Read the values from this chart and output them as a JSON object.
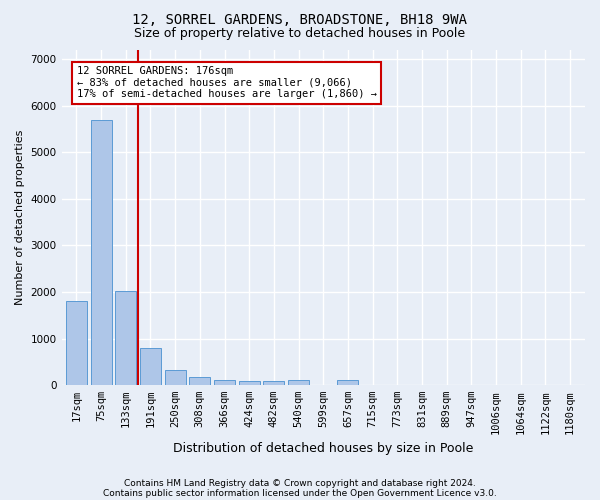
{
  "title1": "12, SORREL GARDENS, BROADSTONE, BH18 9WA",
  "title2": "Size of property relative to detached houses in Poole",
  "xlabel": "Distribution of detached houses by size in Poole",
  "ylabel": "Number of detached properties",
  "categories": [
    "17sqm",
    "75sqm",
    "133sqm",
    "191sqm",
    "250sqm",
    "308sqm",
    "366sqm",
    "424sqm",
    "482sqm",
    "540sqm",
    "599sqm",
    "657sqm",
    "715sqm",
    "773sqm",
    "831sqm",
    "889sqm",
    "947sqm",
    "1006sqm",
    "1064sqm",
    "1122sqm",
    "1180sqm"
  ],
  "values": [
    1800,
    5700,
    2020,
    800,
    330,
    175,
    100,
    85,
    85,
    100,
    0,
    100,
    0,
    0,
    0,
    0,
    0,
    0,
    0,
    0,
    0
  ],
  "bar_color": "#aec6e8",
  "bar_edge_color": "#5b9bd5",
  "annotation_text": "12 SORREL GARDENS: 176sqm\n← 83% of detached houses are smaller (9,066)\n17% of semi-detached houses are larger (1,860) →",
  "annotation_box_color": "#ffffff",
  "annotation_box_edge": "#cc0000",
  "vline_color": "#cc0000",
  "ylim": [
    0,
    7200
  ],
  "yticks": [
    0,
    1000,
    2000,
    3000,
    4000,
    5000,
    6000,
    7000
  ],
  "footer1": "Contains HM Land Registry data © Crown copyright and database right 2024.",
  "footer2": "Contains public sector information licensed under the Open Government Licence v3.0.",
  "bg_color": "#e8eef7",
  "plot_bg_color": "#e8eef7",
  "grid_color": "#ffffff",
  "title1_fontsize": 10,
  "title2_fontsize": 9,
  "xlabel_fontsize": 9,
  "ylabel_fontsize": 8,
  "tick_fontsize": 7.5,
  "annotation_fontsize": 7.5,
  "footer_fontsize": 6.5,
  "vline_x_index": 2,
  "bar_width": 0.85
}
